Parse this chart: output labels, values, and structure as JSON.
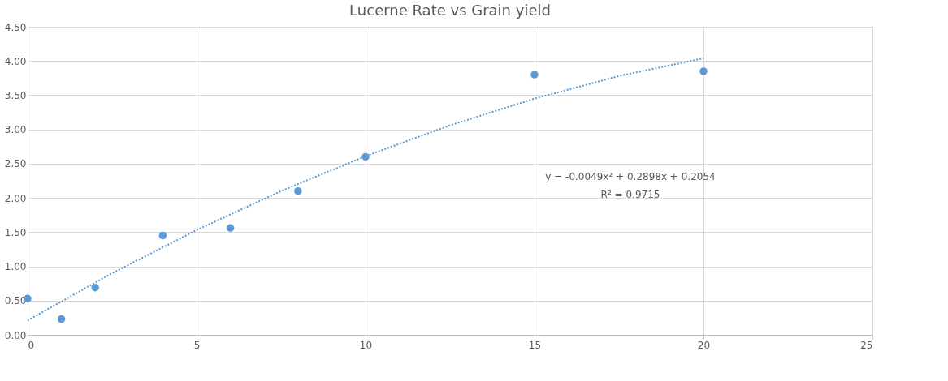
{
  "chart_data": {
    "type": "scatter",
    "title": "Lucerne Rate vs Grain yield",
    "x": [
      0,
      1,
      2,
      4,
      6,
      8,
      10,
      15,
      20
    ],
    "series": [
      {
        "color": "#5b9bd5",
        "values": [
          0.53,
          0.23,
          0.69,
          1.45,
          1.56,
          2.1,
          2.6,
          3.8,
          3.85
        ],
        "marker": "circle"
      },
      {
        "type": "line",
        "color": "#5b9bd5",
        "line_style": "dotted",
        "x": [
          0,
          2.5,
          5,
          7.5,
          10,
          12.5,
          15,
          17.5,
          20
        ],
        "values": [
          0.21,
          0.9,
          1.53,
          2.1,
          2.61,
          3.06,
          3.45,
          3.78,
          4.04
        ]
      }
    ],
    "annotations": [
      "y = -0.0049x² + 0.2898x + 0.2054",
      "R² = 0.9715"
    ],
    "xlim": [
      0,
      25
    ],
    "xticks": [
      0,
      5,
      10,
      15,
      20,
      25
    ],
    "ylim": [
      0,
      4.5
    ],
    "yticks": [
      {
        "value": 0,
        "label": "0.00"
      },
      {
        "value": 0.5,
        "label": "0.50"
      },
      {
        "value": 1,
        "label": "1.00"
      },
      {
        "value": 1.5,
        "label": "1.50"
      },
      {
        "value": 2,
        "label": "2.00"
      },
      {
        "value": 2.5,
        "label": "2.50"
      },
      {
        "value": 3,
        "label": "3.00"
      },
      {
        "value": 3.5,
        "label": "3.50"
      },
      {
        "value": 4,
        "label": "4.00"
      },
      {
        "value": 4.5,
        "label": "4.50"
      }
    ],
    "grid": true
  }
}
